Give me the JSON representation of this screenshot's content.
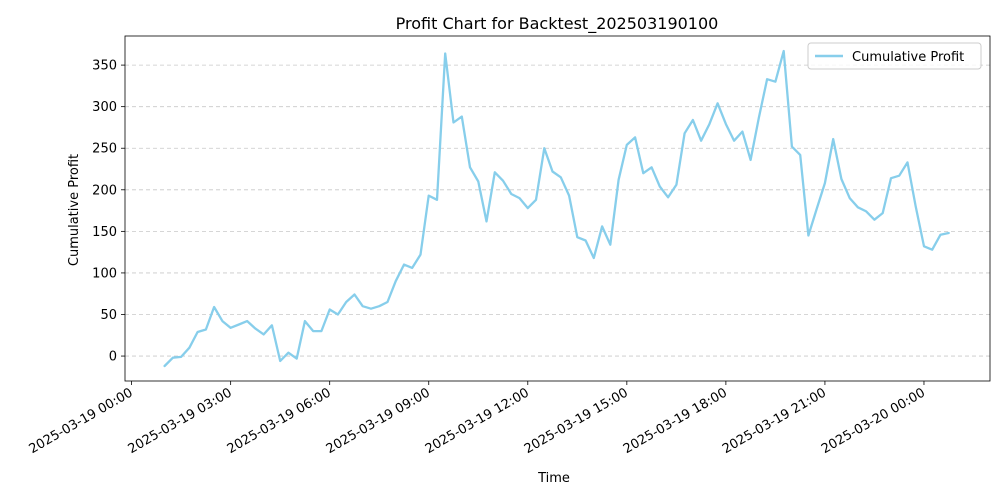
{
  "chart_data": {
    "type": "line",
    "title": "Profit Chart for Backtest_202503190100",
    "xlabel": "Time",
    "ylabel": "Cumulative Profit",
    "x_tick_labels": [
      "2025-03-19 00:00",
      "2025-03-19 03:00",
      "2025-03-19 06:00",
      "2025-03-19 09:00",
      "2025-03-19 12:00",
      "2025-03-19 15:00",
      "2025-03-19 18:00",
      "2025-03-19 21:00",
      "2025-03-20 00:00"
    ],
    "y_ticks": [
      0,
      50,
      100,
      150,
      200,
      250,
      300,
      350
    ],
    "ylim": [
      -30,
      385
    ],
    "xlim_hours": [
      -0.2,
      26.0
    ],
    "grid": "horizontal-dashed",
    "legend_position": "top-right",
    "series": [
      {
        "name": "Cumulative Profit",
        "color": "#87CEEB",
        "x_hours": [
          1.0,
          1.25,
          1.5,
          1.75,
          2.0,
          2.25,
          2.5,
          2.75,
          3.0,
          3.25,
          3.5,
          3.75,
          4.0,
          4.25,
          4.5,
          4.75,
          5.0,
          5.25,
          5.5,
          5.75,
          6.0,
          6.25,
          6.5,
          6.75,
          7.0,
          7.25,
          7.5,
          7.75,
          8.0,
          8.25,
          8.5,
          8.75,
          9.0,
          9.25,
          9.5,
          9.75,
          10.0,
          10.25,
          10.5,
          10.75,
          11.0,
          11.25,
          11.5,
          11.75,
          12.0,
          12.25,
          12.5,
          12.75,
          13.0,
          13.25,
          13.5,
          13.75,
          14.0,
          14.25,
          14.5,
          14.75,
          15.0,
          15.25,
          15.5,
          15.75,
          16.0,
          16.25,
          16.5,
          16.75,
          17.0,
          17.25,
          17.5,
          17.75,
          18.0,
          18.25,
          18.5,
          18.75,
          19.0,
          19.25,
          19.5,
          19.75,
          20.0,
          20.25,
          20.5,
          20.75,
          21.0,
          21.25,
          21.5,
          21.75,
          22.0,
          22.25,
          22.5,
          22.75,
          23.0,
          23.25,
          23.5,
          23.75,
          24.0,
          24.25,
          24.5,
          24.75
        ],
        "values": [
          -12,
          -2,
          -1,
          10,
          29,
          32,
          59,
          42,
          34,
          38,
          42,
          33,
          26,
          37,
          -6,
          4,
          -3,
          42,
          30,
          30,
          56,
          50,
          65,
          74,
          60,
          57,
          60,
          65,
          90,
          110,
          106,
          122,
          193,
          188,
          364,
          281,
          288,
          227,
          210,
          162,
          221,
          211,
          195,
          190,
          178,
          188,
          250,
          222,
          215,
          193,
          143,
          139,
          118,
          156,
          134,
          212,
          254,
          263,
          220,
          227,
          204,
          191,
          206,
          268,
          284,
          259,
          279,
          304,
          279,
          259,
          270,
          236,
          287,
          333,
          330,
          367,
          252,
          242,
          145,
          177,
          208,
          261,
          213,
          190,
          179,
          174,
          164,
          172,
          214,
          217,
          233,
          180,
          132,
          128,
          146,
          148
        ]
      }
    ]
  }
}
